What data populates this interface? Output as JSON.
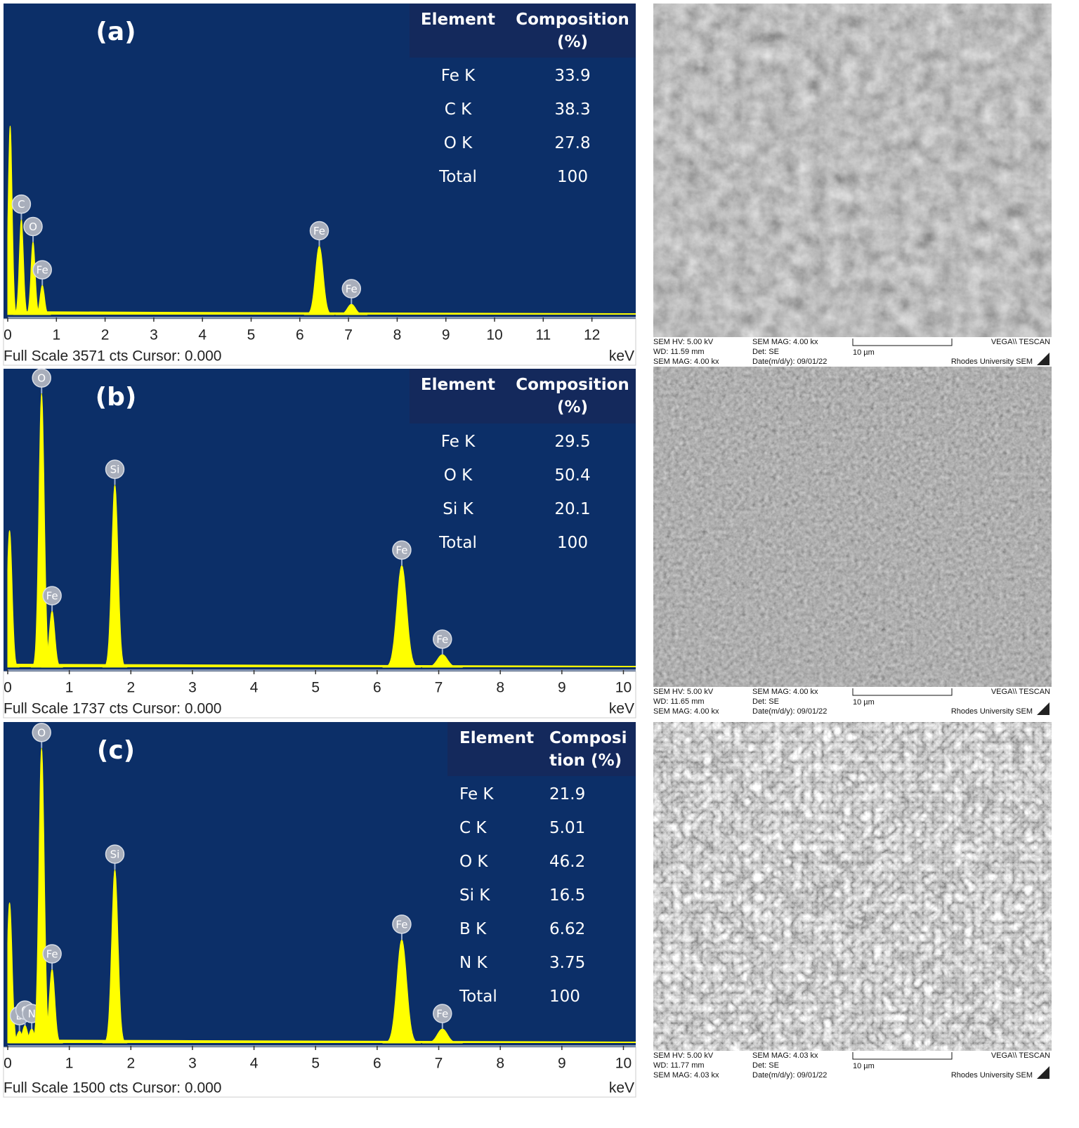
{
  "chart_data": [
    {
      "type": "spectrum",
      "panel_label": "(a)",
      "footer": "Full Scale 3571 cts Cursor: 0.000",
      "x_label": "keV",
      "xlim": [
        0,
        12.9
      ],
      "xticks": [
        0,
        1,
        2,
        3,
        4,
        5,
        6,
        7,
        8,
        9,
        10,
        11,
        12
      ],
      "ylim": [
        0,
        3571
      ],
      "color": "#ffff00",
      "peaks": [
        {
          "x": 0.05,
          "height": 2177
        },
        {
          "x": 0.28,
          "height": 1096,
          "label": "C"
        },
        {
          "x": 0.52,
          "height": 838,
          "label": "O"
        },
        {
          "x": 0.71,
          "height": 339,
          "label": "Fe"
        },
        {
          "x": 6.4,
          "height": 790,
          "label": "Fe"
        },
        {
          "x": 7.06,
          "height": 121,
          "label": "Fe"
        }
      ],
      "table": {
        "header": [
          "Element",
          "Composition (%)"
        ],
        "rows": [
          [
            "Fe K",
            33.9
          ],
          [
            "C K",
            38.3
          ],
          [
            "O K",
            27.8
          ],
          [
            "Total",
            100
          ]
        ]
      }
    },
    {
      "type": "spectrum",
      "panel_label": "(b)",
      "footer": "Full Scale 1737 cts Cursor: 0.000",
      "x_label": "keV",
      "xlim": [
        0,
        10.2
      ],
      "xticks": [
        0,
        1,
        2,
        3,
        4,
        5,
        6,
        7,
        8,
        9,
        10
      ],
      "ylim": [
        0,
        1737
      ],
      "color": "#ffff00",
      "peaks": [
        {
          "x": 0.03,
          "height": 800
        },
        {
          "x": 0.55,
          "height": 1601,
          "label": "O"
        },
        {
          "x": 0.72,
          "height": 328,
          "label": "Fe"
        },
        {
          "x": 1.74,
          "height": 1067,
          "label": "Si"
        },
        {
          "x": 6.4,
          "height": 595,
          "label": "Fe"
        },
        {
          "x": 7.06,
          "height": 74,
          "label": "Fe"
        }
      ],
      "table": {
        "header": [
          "Element",
          "Composition (%)"
        ],
        "rows": [
          [
            "Fe K",
            29.5
          ],
          [
            "O K",
            50.4
          ],
          [
            "Si K",
            20.1
          ],
          [
            "Total",
            100
          ]
        ]
      }
    },
    {
      "type": "spectrum",
      "panel_label": "(c)",
      "footer": "Full Scale 1500 cts Cursor: 0.000",
      "x_label": "keV",
      "xlim": [
        0,
        10.2
      ],
      "xticks": [
        0,
        1,
        2,
        3,
        4,
        5,
        6,
        7,
        8,
        9,
        10
      ],
      "ylim": [
        0,
        1500
      ],
      "color": "#ffff00",
      "peaks": [
        {
          "x": 0.03,
          "height": 659
        },
        {
          "x": 0.19,
          "height": 56,
          "label": "B"
        },
        {
          "x": 0.28,
          "height": 82,
          "label": "C"
        },
        {
          "x": 0.39,
          "height": 66,
          "label": "N"
        },
        {
          "x": 0.55,
          "height": 1385,
          "label": "O"
        },
        {
          "x": 0.72,
          "height": 346,
          "label": "Fe"
        },
        {
          "x": 1.74,
          "height": 814,
          "label": "Si"
        },
        {
          "x": 6.4,
          "height": 485,
          "label": "Fe"
        },
        {
          "x": 7.06,
          "height": 66,
          "label": "Fe"
        }
      ],
      "table": {
        "header": [
          "Element",
          "Composition (%)"
        ],
        "rows": [
          [
            "Fe K",
            21.9
          ],
          [
            "C K",
            5.01
          ],
          [
            "O K",
            46.2
          ],
          [
            "Si K",
            16.5
          ],
          [
            "B K",
            6.62
          ],
          [
            "N K",
            3.75
          ],
          [
            "Total",
            100
          ]
        ]
      }
    }
  ],
  "sem_images": [
    {
      "hv": "SEM HV: 5.00 kV",
      "wd": "WD: 11.59 mm",
      "mag_left": "SEM MAG: 4.00 kx",
      "mag": "SEM MAG: 4.00 kx",
      "det": "Det: SE",
      "date": "Date(m/d/y): 09/01/22",
      "scale": "10 µm",
      "vendor": "VEGA\\\\ TESCAN",
      "lab": "Rhodes University SEM"
    },
    {
      "hv": "SEM HV: 5.00 kV",
      "wd": "WD: 11.65 mm",
      "mag_left": "SEM MAG: 4.00 kx",
      "mag": "SEM MAG: 4.00 kx",
      "det": "Det: SE",
      "date": "Date(m/d/y): 09/01/22",
      "scale": "10 µm",
      "vendor": "VEGA\\\\ TESCAN",
      "lab": "Rhodes University SEM"
    },
    {
      "hv": "SEM HV: 5.00 kV",
      "wd": "WD: 11.77 mm",
      "mag_left": "SEM MAG: 4.03 kx",
      "mag": "SEM MAG: 4.03 kx",
      "det": "Det: SE",
      "date": "Date(m/d/y): 09/01/22",
      "scale": "10 µm",
      "vendor": "VEGA\\\\ TESCAN",
      "lab": "Rhodes University SEM"
    }
  ]
}
